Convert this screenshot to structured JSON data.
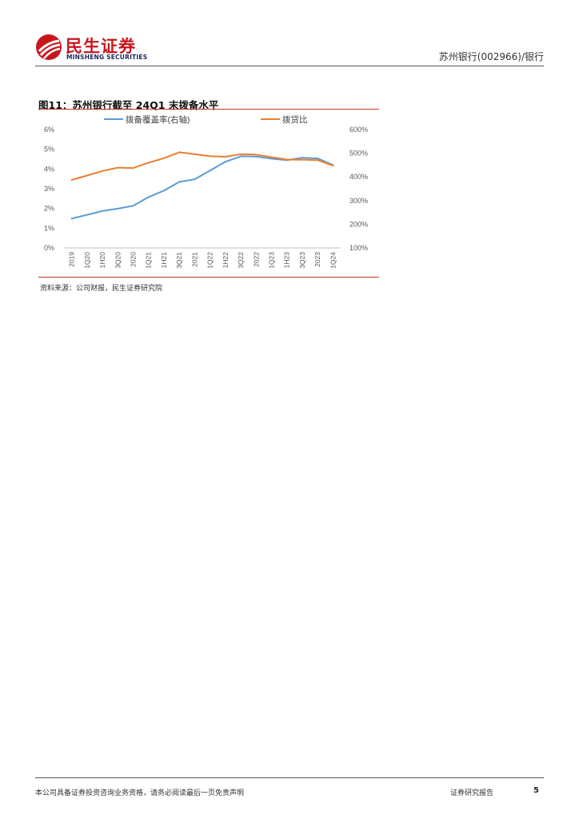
{
  "brand": {
    "name_cn": "民生证券",
    "name_en": "MINSHENG SECURITIES",
    "red": "#c8161d",
    "navy": "#1a2a5a"
  },
  "header": {
    "right_text": "苏州银行(002966)/银行"
  },
  "figure": {
    "title": "图11：苏州银行截至 24Q1 末拨备水平",
    "source": "资料来源：公司财报，民生证券研究院"
  },
  "chart_data": {
    "type": "line",
    "categories": [
      "2019",
      "1Q20",
      "1H20",
      "3Q20",
      "2020",
      "1Q21",
      "1H21",
      "3Q21",
      "2021",
      "1Q22",
      "1H22",
      "3Q22",
      "2022",
      "1Q23",
      "1H23",
      "3Q23",
      "2023",
      "1Q24"
    ],
    "series": [
      {
        "name": "拨备覆盖率(右轴)",
        "axis": "right",
        "color": "#5b9bd5",
        "values": [
          224,
          240,
          256,
          266,
          278,
          315,
          342,
          379,
          390,
          427,
          464,
          487,
          486,
          477,
          471,
          481,
          478,
          450
        ]
      },
      {
        "name": "拨贷比",
        "axis": "left",
        "color": "#ed7d31",
        "values": [
          3.45,
          3.67,
          3.9,
          4.07,
          4.05,
          4.32,
          4.55,
          4.85,
          4.75,
          4.65,
          4.62,
          4.75,
          4.73,
          4.6,
          4.48,
          4.47,
          4.45,
          4.17
        ]
      }
    ],
    "left_axis": {
      "min": 0,
      "max": 6,
      "step": 1,
      "tick_labels": [
        "0%",
        "1%",
        "2%",
        "3%",
        "4%",
        "5%",
        "6%"
      ]
    },
    "right_axis": {
      "min": 100,
      "max": 600,
      "step": 100,
      "tick_labels": [
        "100%",
        "200%",
        "300%",
        "400%",
        "500%",
        "600%"
      ]
    },
    "legend_position": "top",
    "grid": false
  },
  "footer": {
    "disclaimer": "本公司具备证券投资咨询业务资格，请务必阅读最后一页免责声明",
    "report_type": "证券研究报告",
    "page": "5"
  }
}
